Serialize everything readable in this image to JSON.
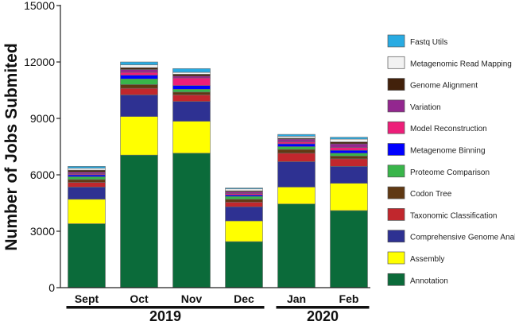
{
  "chart_data": {
    "type": "bar",
    "stacked": true,
    "ylabel": "Number of Jobs Submited",
    "xlabel": "",
    "ylim": [
      0,
      15000
    ],
    "yticks": [
      0,
      3000,
      6000,
      9000,
      12000,
      15000
    ],
    "yticks_labels": [
      "0",
      "3000",
      "6000",
      "9000",
      "12000",
      "15000"
    ],
    "grid": false,
    "legend_position": "right",
    "categories": [
      "Sept",
      "Oct",
      "Nov",
      "Dec",
      "Jan",
      "Feb"
    ],
    "year_groups": [
      {
        "label": "2019",
        "categories": [
          "Sept",
          "Oct",
          "Nov",
          "Dec"
        ]
      },
      {
        "label": "2020",
        "categories": [
          "Jan",
          "Feb"
        ]
      }
    ],
    "series": [
      {
        "name": "Annotation",
        "color": "#0b6b3a",
        "values": [
          3400,
          7050,
          7150,
          2450,
          4450,
          4100
        ]
      },
      {
        "name": "Assembly",
        "color": "#ffff00",
        "values": [
          1300,
          2050,
          1700,
          1100,
          900,
          1450
        ]
      },
      {
        "name": "Comprehensive Genome Analysis",
        "color": "#2e3192",
        "values": [
          650,
          1150,
          1050,
          750,
          1350,
          900
        ]
      },
      {
        "name": "Taxonomic Classification",
        "color": "#c1272d",
        "values": [
          250,
          350,
          350,
          250,
          450,
          400
        ]
      },
      {
        "name": "Codon Tree",
        "color": "#603913",
        "values": [
          150,
          200,
          150,
          150,
          200,
          150
        ]
      },
      {
        "name": "Proteome Comparison",
        "color": "#39b54a",
        "values": [
          150,
          300,
          150,
          150,
          150,
          150
        ]
      },
      {
        "name": "Metagenome Binning",
        "color": "#0000ff",
        "values": [
          100,
          200,
          200,
          80,
          150,
          150
        ]
      },
      {
        "name": "Model Reconstruction",
        "color": "#ed1e79",
        "values": [
          50,
          150,
          400,
          70,
          100,
          150
        ]
      },
      {
        "name": "Variation",
        "color": "#93278f",
        "values": [
          100,
          150,
          100,
          100,
          150,
          200
        ]
      },
      {
        "name": "Genome Alignment",
        "color": "#42210b",
        "values": [
          100,
          100,
          100,
          50,
          50,
          100
        ]
      },
      {
        "name": "Metagenomic Read Mapping",
        "color": "#f2f2f2",
        "values": [
          100,
          150,
          100,
          100,
          100,
          150
        ]
      },
      {
        "name": "Fastq Utils",
        "color": "#29abe2",
        "values": [
          100,
          150,
          200,
          50,
          100,
          100
        ]
      }
    ]
  }
}
